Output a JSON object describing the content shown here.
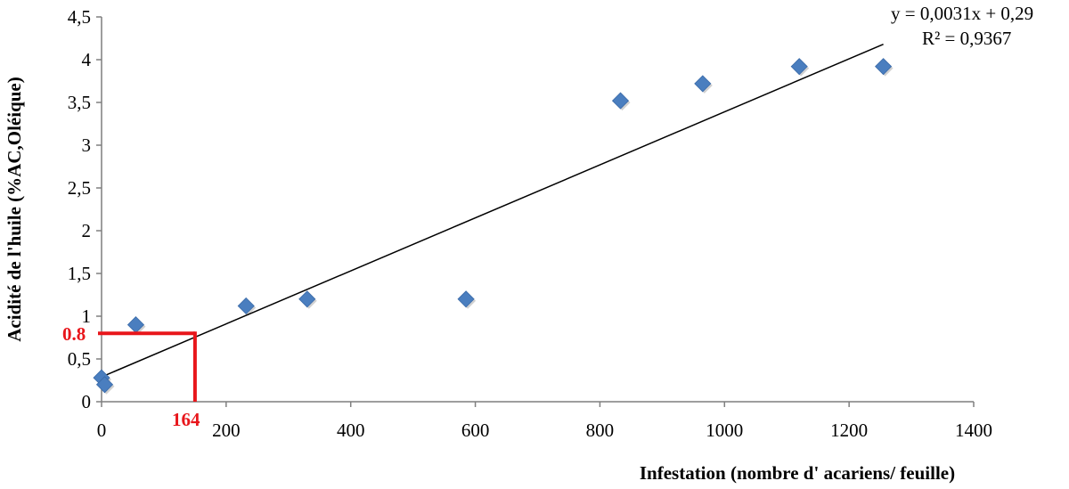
{
  "chart_data": {
    "type": "scatter",
    "xlabel": "Infestation  (nombre d' acariens/ feuille)",
    "ylabel": "Acidité de l'huile (%AC,Oléique)",
    "xlim": [
      0,
      1400
    ],
    "ylim": [
      0,
      4.5
    ],
    "x_ticks": [
      0,
      200,
      400,
      600,
      800,
      1000,
      1200,
      1400
    ],
    "y_ticks": [
      0,
      0.5,
      1,
      1.5,
      2,
      2.5,
      3,
      3.5,
      4,
      4.5
    ],
    "x_tick_labels": [
      "0",
      "200",
      "400",
      "600",
      "800",
      "1000",
      "1200",
      "1400"
    ],
    "y_tick_labels": [
      "0",
      "0,5",
      "1",
      "1,5",
      "2",
      "2,5",
      "3",
      "3,5",
      "4",
      "4,5"
    ],
    "grid": false,
    "marker_color": "#4a7ebf",
    "series": [
      {
        "x": [
          0,
          5,
          55,
          232,
          330,
          585,
          833,
          965,
          1120,
          1255
        ],
        "y": [
          0.28,
          0.2,
          0.9,
          1.12,
          1.2,
          1.2,
          3.52,
          3.72,
          3.92,
          3.92
        ]
      }
    ],
    "trendline": {
      "slope": 0.0031,
      "intercept": 0.29,
      "x_range": [
        0,
        1255
      ],
      "color": "#000000",
      "equation": "y = 0,0031x + 0,29",
      "r_squared": "R² = 0,9367"
    },
    "annotation": {
      "x": 150,
      "y": 0.8,
      "x_label": "164",
      "y_label": "0.8",
      "color": "#e8161b"
    }
  }
}
